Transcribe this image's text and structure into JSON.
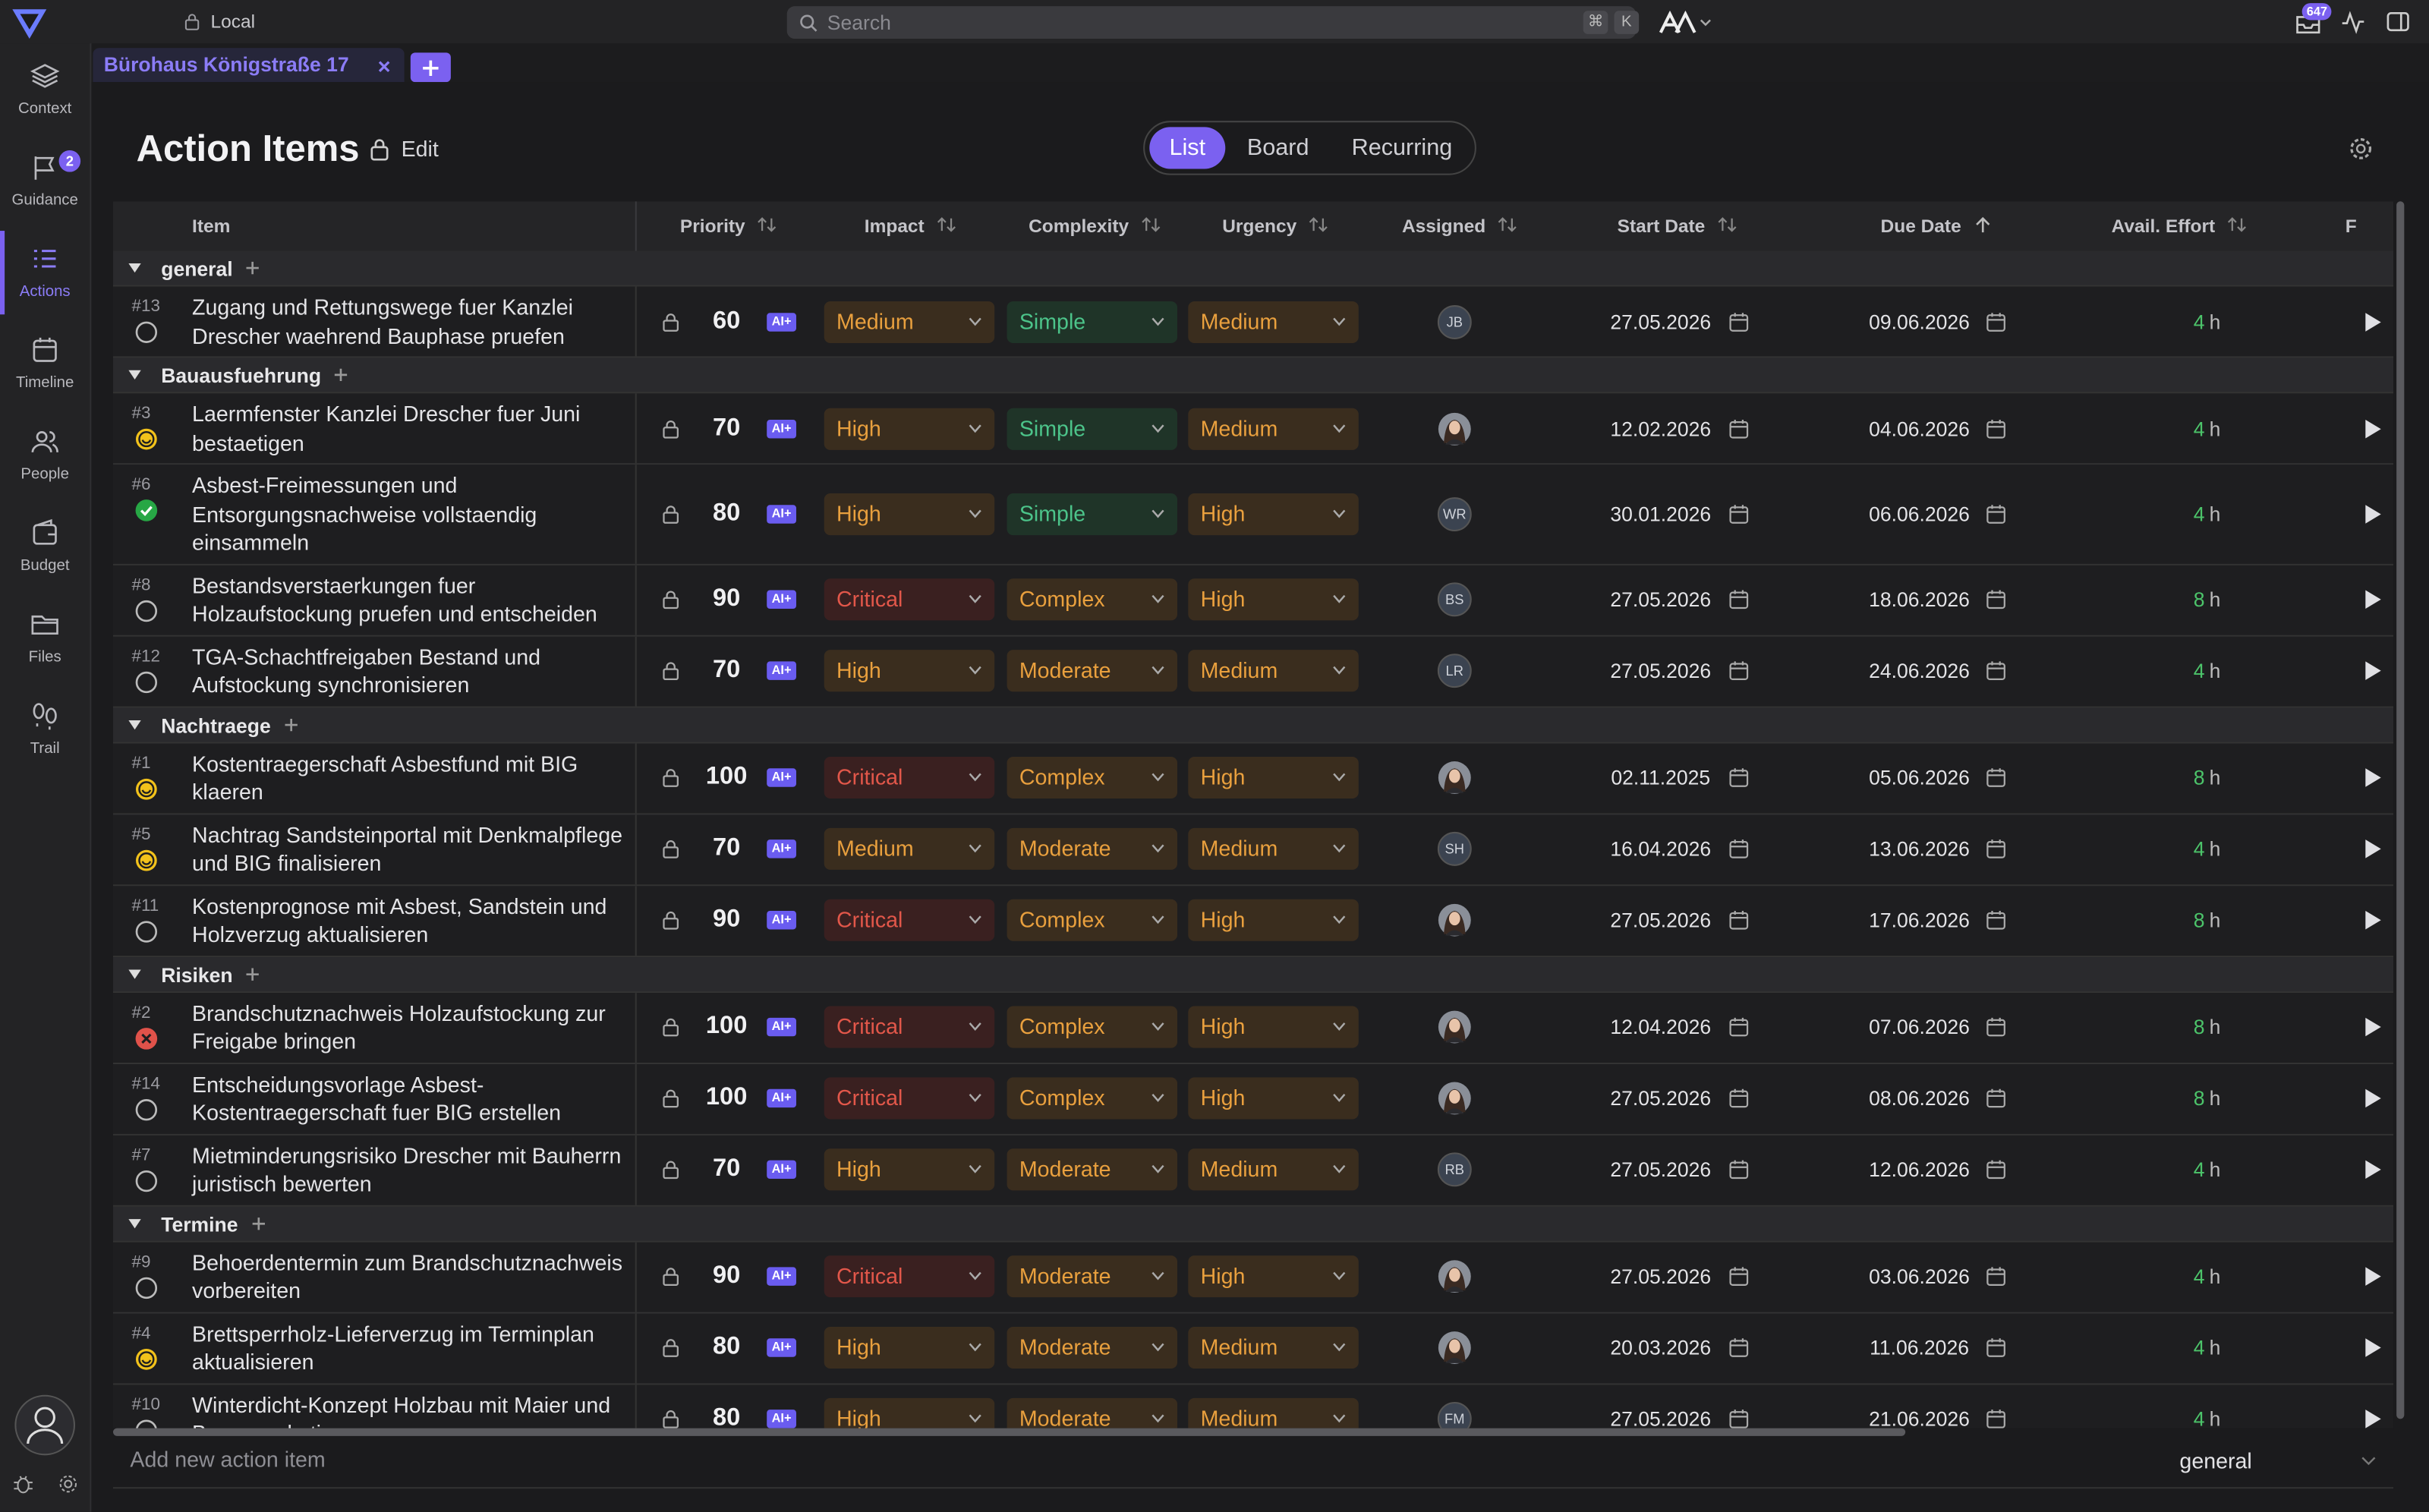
{
  "topbar": {
    "location": "Local",
    "search_placeholder": "Search",
    "shortcut": [
      "⌘",
      "K"
    ],
    "notifications": "647"
  },
  "sidebar": {
    "items": [
      {
        "label": "Context",
        "badge": null
      },
      {
        "label": "Guidance",
        "badge": "2"
      },
      {
        "label": "Actions",
        "badge": null
      },
      {
        "label": "Timeline",
        "badge": null
      },
      {
        "label": "People",
        "badge": null
      },
      {
        "label": "Budget",
        "badge": null
      },
      {
        "label": "Files",
        "badge": null
      },
      {
        "label": "Trail",
        "badge": null
      }
    ],
    "active": 2
  },
  "tab": {
    "title": "Bürohaus Königstraße 17"
  },
  "header": {
    "title": "Action Items",
    "edit": "Edit",
    "views": [
      "List",
      "Board",
      "Recurring"
    ],
    "active_view": 0
  },
  "table": {
    "columns": [
      "Item",
      "Priority",
      "Impact",
      "Complexity",
      "Urgency",
      "Assigned",
      "Start Date",
      "Due Date",
      "Avail. Effort",
      "F"
    ],
    "ai_badge": "AI+",
    "effort_unit": "h",
    "level_colors": {
      "Medium": {
        "fg": "#e9a03e",
        "bg": "#3a2d1e"
      },
      "High": {
        "fg": "#e9a03e",
        "bg": "#3a2d1e"
      },
      "Moderate": {
        "fg": "#e9a03e",
        "bg": "#3a2d1e"
      },
      "Complex": {
        "fg": "#e9a03e",
        "bg": "#3a2d1e"
      },
      "Critical": {
        "fg": "#e2574a",
        "bg": "#3a2020"
      },
      "Simple": {
        "fg": "#4cc48a",
        "bg": "#1f3428"
      }
    },
    "groups": [
      {
        "name": "general",
        "rows": [
          {
            "id": "#13",
            "title": "Zugang und Rettungswege fuer Kanzlei Drescher waehrend Bauphase pruefen",
            "status": "open",
            "priority": 60,
            "impact": "Medium",
            "complexity": "Simple",
            "urgency": "Medium",
            "assigned": "JB",
            "start": "27.05.2026",
            "due": "09.06.2026",
            "effort": 4
          }
        ]
      },
      {
        "name": "Bauausfuehrung",
        "rows": [
          {
            "id": "#3",
            "title": "Laermfenster Kanzlei Drescher fuer Juni bestaetigen",
            "status": "progress",
            "priority": 70,
            "impact": "High",
            "complexity": "Simple",
            "urgency": "Medium",
            "assigned": null,
            "start": "12.02.2026",
            "due": "04.06.2026",
            "effort": 4
          },
          {
            "id": "#6",
            "title": "Asbest-Freimessungen und Entsorgungsnachweise vollstaendig einsammeln",
            "status": "done",
            "priority": 80,
            "impact": "High",
            "complexity": "Simple",
            "urgency": "High",
            "assigned": "WR",
            "start": "30.01.2026",
            "due": "06.06.2026",
            "effort": 4
          },
          {
            "id": "#8",
            "title": "Bestandsverstaerkungen fuer Holzaufstockung pruefen und entscheiden",
            "status": "open",
            "priority": 90,
            "impact": "Critical",
            "complexity": "Complex",
            "urgency": "High",
            "assigned": "BS",
            "start": "27.05.2026",
            "due": "18.06.2026",
            "effort": 8
          },
          {
            "id": "#12",
            "title": "TGA-Schachtfreigaben Bestand und Aufstockung synchronisieren",
            "status": "open",
            "priority": 70,
            "impact": "High",
            "complexity": "Moderate",
            "urgency": "Medium",
            "assigned": "LR",
            "start": "27.05.2026",
            "due": "24.06.2026",
            "effort": 4
          }
        ]
      },
      {
        "name": "Nachtraege",
        "rows": [
          {
            "id": "#1",
            "title": "Kostentraegerschaft Asbestfund mit BIG klaeren",
            "status": "progress",
            "priority": 100,
            "impact": "Critical",
            "complexity": "Complex",
            "urgency": "High",
            "assigned": null,
            "start": "02.11.2025",
            "due": "05.06.2026",
            "effort": 8
          },
          {
            "id": "#5",
            "title": "Nachtrag Sandsteinportal mit Denkmalpflege und BIG finalisieren",
            "status": "progress",
            "priority": 70,
            "impact": "Medium",
            "complexity": "Moderate",
            "urgency": "Medium",
            "assigned": "SH",
            "start": "16.04.2026",
            "due": "13.06.2026",
            "effort": 4
          },
          {
            "id": "#11",
            "title": "Kostenprognose mit Asbest, Sandstein und Holzverzug aktualisieren",
            "status": "open",
            "priority": 90,
            "impact": "Critical",
            "complexity": "Complex",
            "urgency": "High",
            "assigned": null,
            "start": "27.05.2026",
            "due": "17.06.2026",
            "effort": 8
          }
        ]
      },
      {
        "name": "Risiken",
        "rows": [
          {
            "id": "#2",
            "title": "Brandschutznachweis Holzaufstockung zur Freigabe bringen",
            "status": "blocked",
            "priority": 100,
            "impact": "Critical",
            "complexity": "Complex",
            "urgency": "High",
            "assigned": null,
            "start": "12.04.2026",
            "due": "07.06.2026",
            "effort": 8
          },
          {
            "id": "#14",
            "title": "Entscheidungsvorlage Asbest-Kostentraegerschaft fuer BIG erstellen",
            "status": "open",
            "priority": 100,
            "impact": "Critical",
            "complexity": "Complex",
            "urgency": "High",
            "assigned": null,
            "start": "27.05.2026",
            "due": "08.06.2026",
            "effort": 8
          },
          {
            "id": "#7",
            "title": "Mietminderungsrisiko Drescher mit Bauherrn juristisch bewerten",
            "status": "open",
            "priority": 70,
            "impact": "High",
            "complexity": "Moderate",
            "urgency": "Medium",
            "assigned": "RB",
            "start": "27.05.2026",
            "due": "12.06.2026",
            "effort": 4
          }
        ]
      },
      {
        "name": "Termine",
        "rows": [
          {
            "id": "#9",
            "title": "Behoerdentermin zum Brandschutznachweis vorbereiten",
            "status": "open",
            "priority": 90,
            "impact": "Critical",
            "complexity": "Moderate",
            "urgency": "High",
            "assigned": null,
            "start": "27.05.2026",
            "due": "03.06.2026",
            "effort": 4
          },
          {
            "id": "#4",
            "title": "Brettsperrholz-Lieferverzug im Terminplan aktualisieren",
            "status": "progress",
            "priority": 80,
            "impact": "High",
            "complexity": "Moderate",
            "urgency": "Medium",
            "assigned": null,
            "start": "20.03.2026",
            "due": "11.06.2026",
            "effort": 4
          },
          {
            "id": "#10",
            "title": "Winterdicht-Konzept Holzbau mit Maier und Brunner abstimmen",
            "status": "open",
            "priority": 80,
            "impact": "High",
            "complexity": "Moderate",
            "urgency": "Medium",
            "assigned": "FM",
            "start": "27.05.2026",
            "due": "21.06.2026",
            "effort": 4
          }
        ]
      }
    ]
  },
  "footer": {
    "add_placeholder": "Add new action item",
    "group": "general"
  }
}
